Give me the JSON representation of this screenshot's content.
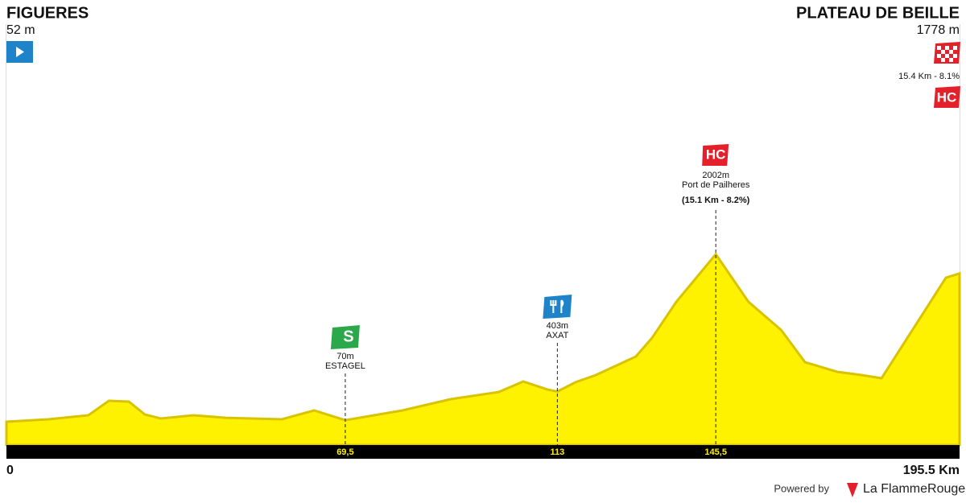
{
  "chart_data": {
    "type": "area",
    "start": {
      "name": "FIGUERES",
      "elevation": "52 m"
    },
    "finish": {
      "name": "PLATEAU DE BEILLE",
      "elevation": "1778 m",
      "climb": "15.4 Km - 8.1%",
      "icon": "HC"
    },
    "x": [
      0,
      8.6,
      16.8,
      21,
      25.1,
      28.4,
      31.7,
      38.3,
      44.9,
      56.5,
      63.1,
      69.5,
      81.2,
      91.1,
      101,
      106,
      111,
      113,
      116.7,
      120.9,
      129.1,
      132.4,
      137.4,
      145.5,
      152.2,
      158.9,
      163.8,
      170.4,
      175.4,
      179.5,
      186.9,
      192.7,
      195.5
    ],
    "values": [
      52,
      80,
      127,
      295,
      286,
      136,
      89,
      127,
      98,
      80,
      183,
      70,
      183,
      314,
      398,
      520,
      426,
      403,
      511,
      595,
      811,
      1026,
      1448,
      2002,
      1448,
      1120,
      745,
      633,
      595,
      558,
      1214,
      1729,
      1778
    ],
    "color": "#fff200",
    "xlim": [
      0,
      195.5
    ],
    "ylim": [
      -220,
      4700
    ],
    "xticks": [
      0,
      {
        "value": 69.5,
        "label": "69,5"
      },
      113,
      {
        "value": 145.5,
        "label": "145,5"
      },
      {
        "value": 195.5,
        "label": "195.5 Km"
      }
    ],
    "markers": [
      {
        "icon": "S",
        "label": "70m",
        "name": "ESTAGEL"
      },
      {
        "label": "403m",
        "name": "AXAT"
      },
      {
        "icon": "HC",
        "label": "2002m",
        "name": "Port de Pailheres",
        "detail": "(15.1 Km - 8.2%)"
      }
    ],
    "footer": {
      "powered": "Powered by",
      "brand": "La FlammeRouge"
    }
  }
}
